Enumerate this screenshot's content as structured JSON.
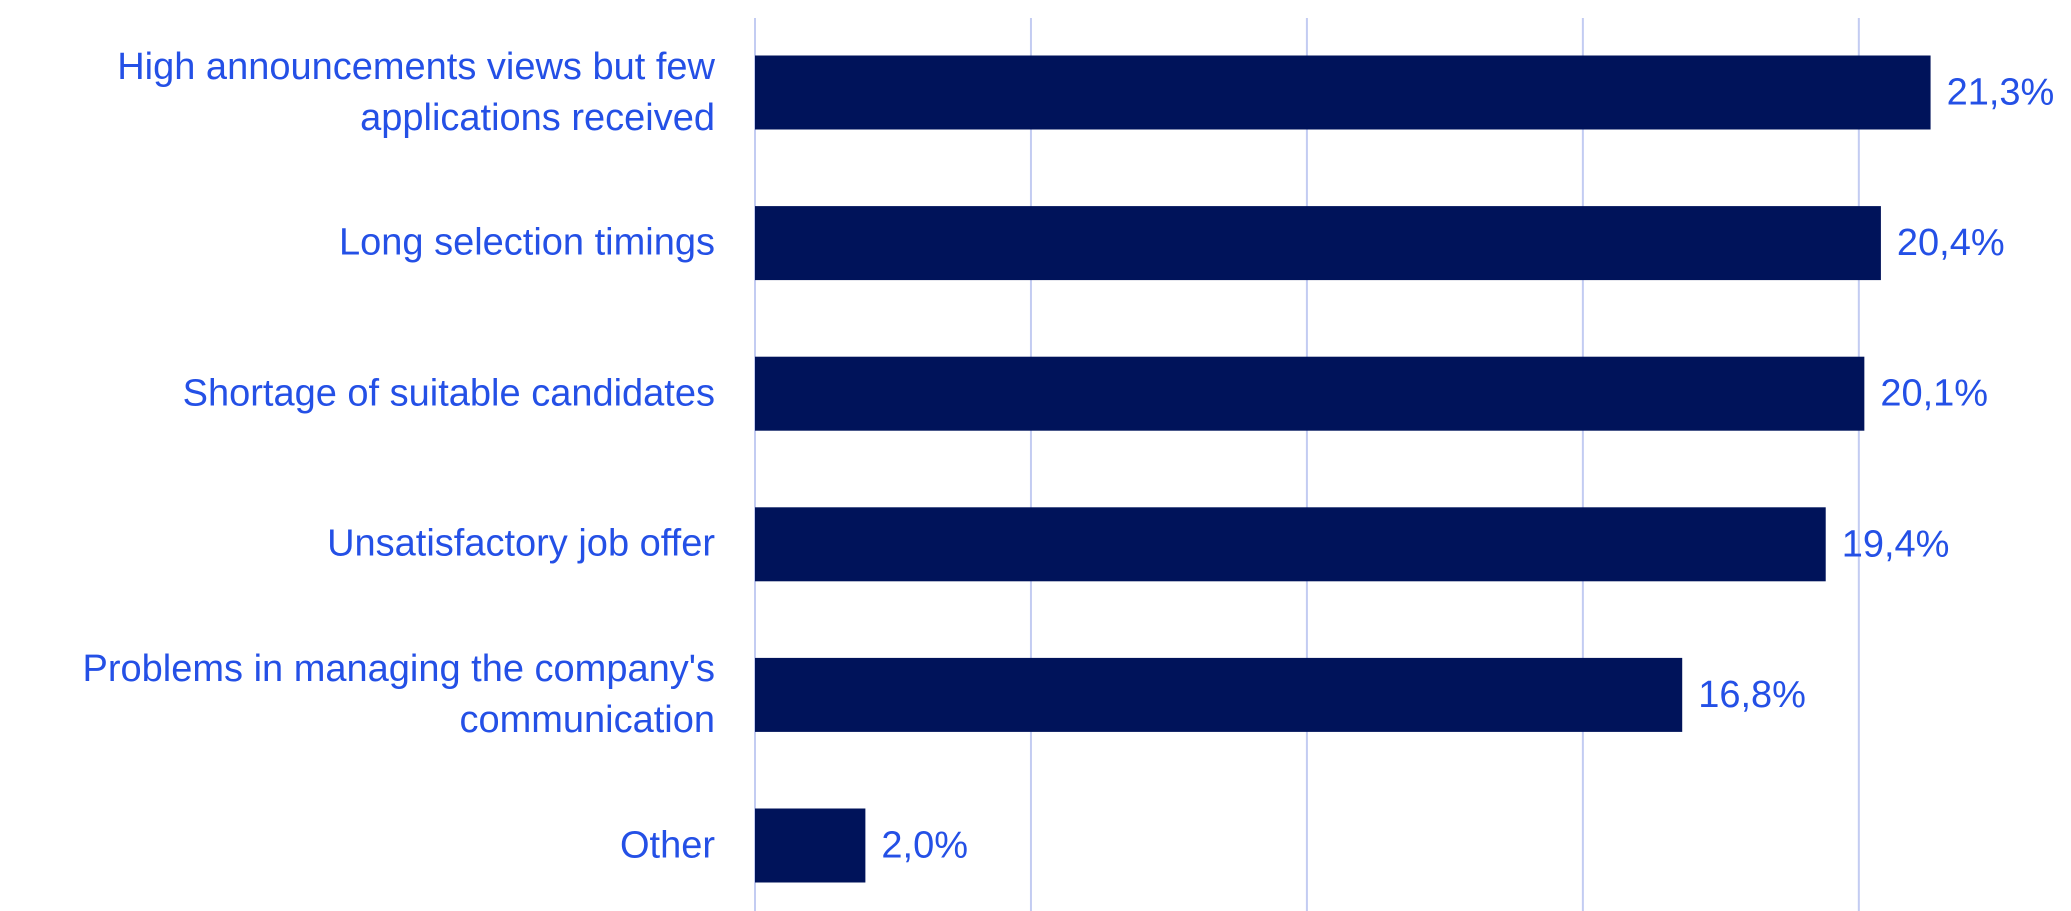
{
  "chart_data": {
    "type": "bar",
    "orientation": "horizontal",
    "categories": [
      "High announcements views but few applications received",
      "Long selection timings",
      "Shortage of suitable candidates",
      "Unsatisfactory job offer",
      "Problems in managing the company's communication",
      "Other"
    ],
    "values": [
      21.3,
      20.4,
      20.1,
      19.4,
      16.8,
      2.0
    ],
    "value_labels": [
      "21,3%",
      "20,4%",
      "20,1%",
      "19,4%",
      "16,8%",
      "2,0%"
    ],
    "color": "#00135a",
    "xlim": [
      0,
      23.5
    ],
    "xticks": [
      0,
      5,
      10,
      15,
      20
    ],
    "grid": true
  }
}
